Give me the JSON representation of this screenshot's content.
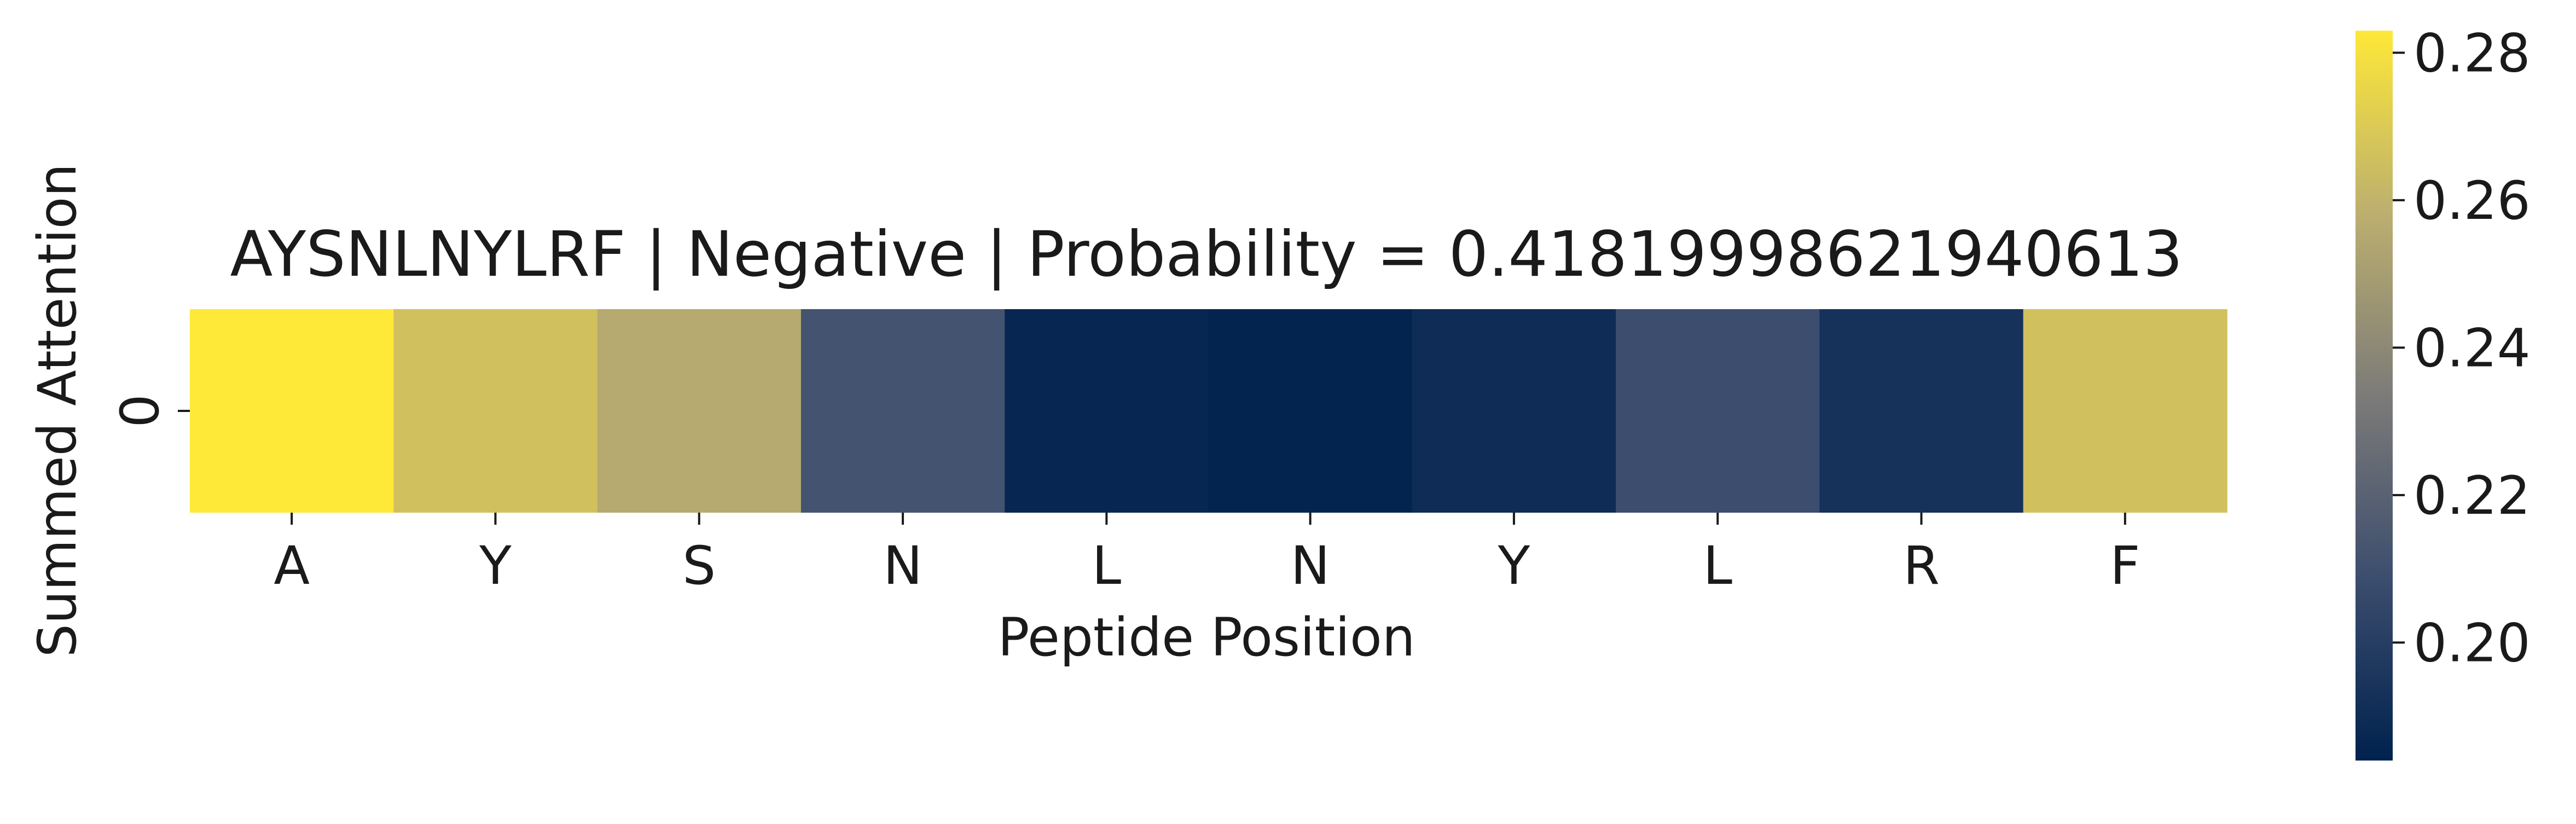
{
  "chart_data": {
    "type": "heatmap",
    "title": "AYSNLNYLRF | Negative | Probability = 0.41819998621940613",
    "xlabel": "Peptide Position",
    "ylabel": "Summed Attention",
    "x_tick_labels": [
      "A",
      "Y",
      "S",
      "N",
      "L",
      "N",
      "Y",
      "L",
      "R",
      "F"
    ],
    "y_tick_labels": [
      "0"
    ],
    "values": [
      [
        0.283,
        0.266,
        0.256,
        0.212,
        0.187,
        0.185,
        0.19,
        0.209,
        0.193,
        0.266
      ]
    ],
    "colorbar": {
      "colormap": "cividis",
      "vmin": 0.184,
      "vmax": 0.283,
      "tick_values": [
        0.2,
        0.22,
        0.24,
        0.26,
        0.28
      ],
      "tick_labels": [
        "0.20",
        "0.22",
        "0.24",
        "0.26",
        "0.28"
      ]
    }
  }
}
